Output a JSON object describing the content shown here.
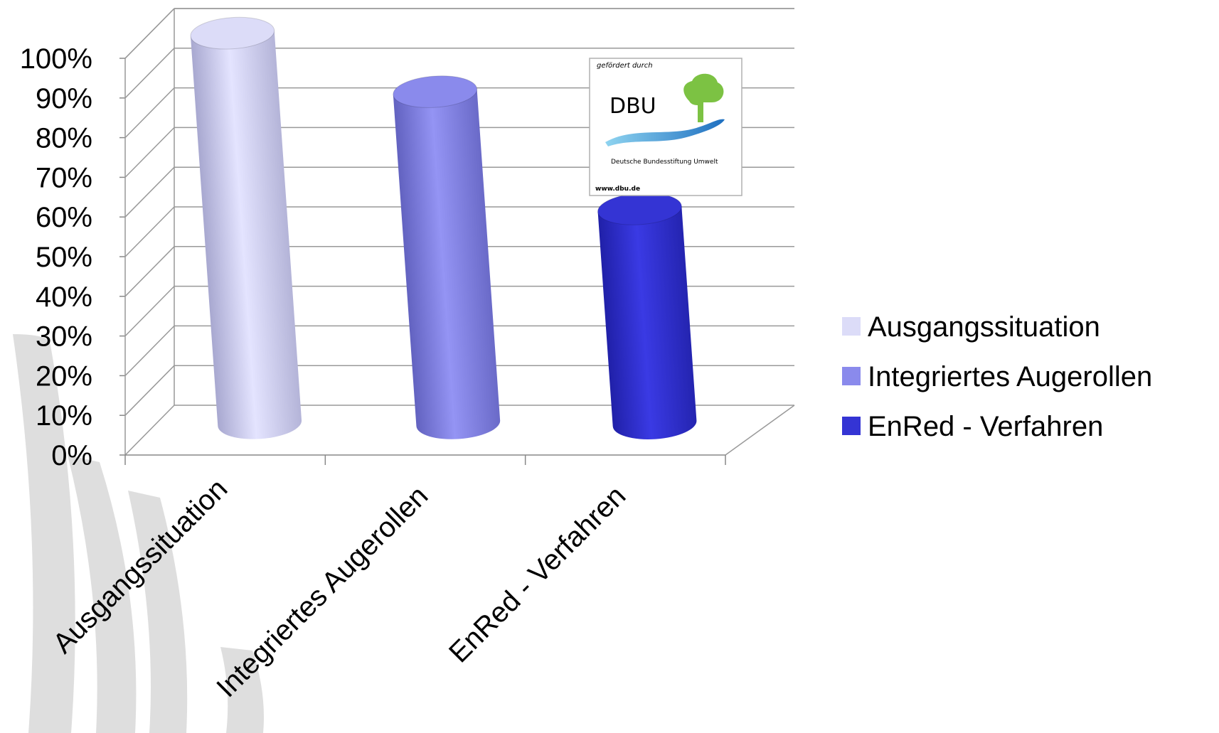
{
  "chart_data": {
    "type": "bar",
    "style": "3d-cylinder",
    "categories": [
      "Ausgangssituation",
      "Integriertes Augerollen",
      "EnRed - Verfahren"
    ],
    "values": [
      100,
      85,
      55
    ],
    "colors": [
      "#dcdcf8",
      "#8a8aec",
      "#3434d4"
    ],
    "ylim": [
      0,
      100
    ],
    "yticks": [
      "0%",
      "10%",
      "20%",
      "30%",
      "40%",
      "50%",
      "60%",
      "70%",
      "80%",
      "90%",
      "100%"
    ],
    "grid": true,
    "legend": {
      "placement": "right",
      "entries": [
        "Ausgangssituation",
        "Integriertes Augerollen",
        "EnRed - Verfahren"
      ]
    }
  },
  "logo": {
    "caption": "gefördert durch",
    "name": "DBU",
    "full_name": "Deutsche Bundesstiftung Umwelt",
    "url": "www.dbu.de"
  }
}
